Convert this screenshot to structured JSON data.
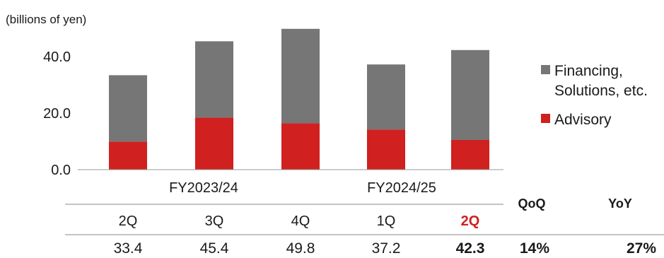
{
  "chart_data": {
    "type": "bar",
    "stacked": true,
    "unit_label": "(billions of yen)",
    "ylim": [
      0,
      50
    ],
    "y_ticks": [
      "0.0",
      "20.0",
      "40.0"
    ],
    "y_tick_values": [
      0,
      20,
      40
    ],
    "grid": false,
    "legend_position": "right",
    "categories": [
      "2Q",
      "3Q",
      "4Q",
      "1Q",
      "2Q"
    ],
    "fiscal_years": [
      {
        "label": "FY2023/24",
        "categories": [
          "2Q",
          "3Q",
          "4Q"
        ]
      },
      {
        "label": "FY2024/25",
        "categories": [
          "1Q",
          "2Q"
        ]
      }
    ],
    "series": [
      {
        "name": "Advisory",
        "color": "#d0201f",
        "values": [
          9.9,
          18.4,
          16.4,
          14.2,
          10.5
        ]
      },
      {
        "name": "Financing, Solutions, etc.",
        "name_lines": [
          "Financing,",
          "Solutions, etc."
        ],
        "color": "#767676",
        "values": [
          23.5,
          27.0,
          33.4,
          23.0,
          31.8
        ]
      }
    ],
    "totals": [
      "33.4",
      "45.4",
      "49.8",
      "37.2",
      "42.3"
    ],
    "highlight_category_color": "#d0201f",
    "comparison": {
      "qoq_label": "QoQ",
      "qoq_value": "14%",
      "yoy_label": "YoY",
      "yoy_value": "27%"
    }
  }
}
